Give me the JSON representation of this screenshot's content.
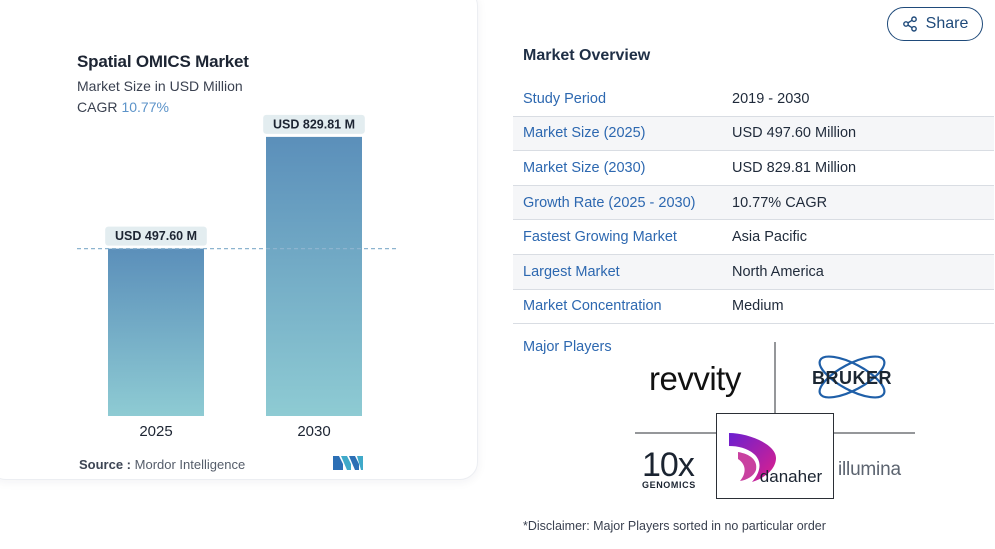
{
  "chart": {
    "title": "Spatial OMICS Market",
    "subtitle": "Market Size in USD Million",
    "cagr_label": "CAGR",
    "cagr_value": "10.77%",
    "source_label": "Source :",
    "source_value": "Mordor Intelligence",
    "bar_labels": [
      "USD 497.60 M",
      "USD 829.81 M"
    ]
  },
  "chart_data": {
    "type": "bar",
    "categories": [
      "2025",
      "2030"
    ],
    "values": [
      497.6,
      829.81
    ],
    "title": "Spatial OMICS Market",
    "ylabel": "Market Size in USD Million",
    "ylim": [
      0,
      880
    ],
    "data_labels": [
      "USD 497.60 M",
      "USD 829.81 M"
    ],
    "reference_line_value": 497.6,
    "colors": {
      "bar_top": "#5b8fba",
      "bar_bottom": "#8ecbd3",
      "label_bg": "#e3edf0",
      "dashed_line": "#8db4cf"
    }
  },
  "share": {
    "label": "Share",
    "icon": "share-icon"
  },
  "overview": {
    "title": "Market Overview",
    "rows": [
      {
        "label": "Study Period",
        "value": "2019 - 2030"
      },
      {
        "label": "Market Size (2025)",
        "value": "USD 497.60 Million"
      },
      {
        "label": "Market Size (2030)",
        "value": "USD 829.81 Million"
      },
      {
        "label": "Growth Rate (2025 - 2030)",
        "value": "10.77% CAGR"
      },
      {
        "label": "Fastest Growing Market",
        "value": "Asia Pacific"
      },
      {
        "label": "Largest Market",
        "value": "North America"
      },
      {
        "label": "Market Concentration",
        "value": "Medium"
      }
    ],
    "players_label": "Major Players"
  },
  "players": {
    "revvity": "revvity",
    "bruker": "BRUKER",
    "tenx_main": "10x",
    "tenx_sub": "GENOMICS",
    "danaher": "danaher",
    "illumina": "illumina"
  },
  "disclaimer": "*Disclaimer: Major Players sorted in no particular order"
}
